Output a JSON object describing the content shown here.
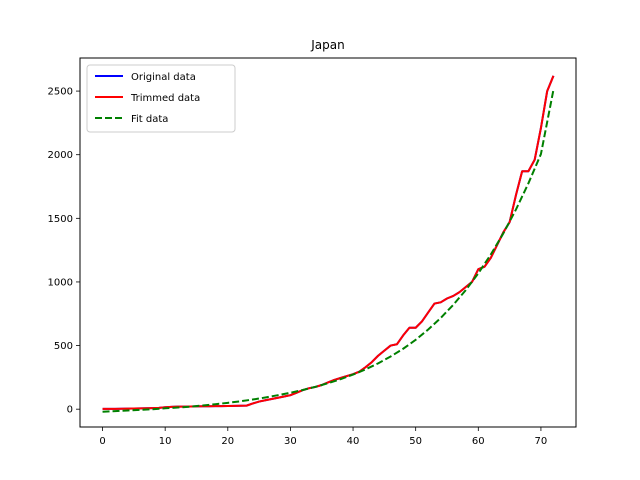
{
  "chart_data": {
    "type": "line",
    "title": "Japan",
    "xlabel": "",
    "ylabel": "",
    "xlim": [
      -3.6,
      75.6
    ],
    "ylim": [
      -140,
      2760
    ],
    "xticks": [
      0,
      10,
      20,
      30,
      40,
      50,
      60,
      70
    ],
    "yticks": [
      0,
      500,
      1000,
      1500,
      2000,
      2500
    ],
    "grid": false,
    "legend": "top-left",
    "series": [
      {
        "name": "Original data",
        "color": "#0000ff",
        "style": "solid",
        "x": [
          0,
          1,
          2,
          3,
          4,
          5,
          6,
          7,
          8,
          9,
          10,
          11,
          12,
          13,
          14,
          15,
          16,
          17,
          18,
          19,
          20,
          21,
          22,
          23,
          24,
          25,
          26,
          27,
          28,
          29,
          30,
          31,
          32,
          33,
          34,
          35,
          36,
          37,
          38,
          39,
          40,
          41,
          42,
          43,
          44,
          45,
          46,
          47,
          48,
          49,
          50,
          51,
          52,
          53,
          54,
          55,
          56,
          57,
          58,
          59,
          60,
          61,
          62,
          63,
          64,
          65,
          66,
          67,
          68,
          69,
          70,
          71,
          72
        ],
        "y": [
          2,
          2,
          2,
          3,
          4,
          5,
          6,
          7,
          8,
          10,
          15,
          18,
          20,
          20,
          21,
          22,
          23,
          23,
          24,
          24,
          25,
          26,
          27,
          28,
          45,
          60,
          70,
          80,
          90,
          100,
          110,
          130,
          150,
          165,
          175,
          190,
          210,
          230,
          245,
          260,
          275,
          295,
          330,
          370,
          420,
          460,
          500,
          510,
          580,
          640,
          640,
          690,
          760,
          830,
          840,
          870,
          890,
          920,
          960,
          1000,
          1100,
          1120,
          1190,
          1290,
          1390,
          1470,
          1680,
          1870,
          1870,
          1960,
          2210,
          2500,
          2620
        ]
      },
      {
        "name": "Trimmed data",
        "color": "#ff0000",
        "style": "solid",
        "x": [
          0,
          1,
          2,
          3,
          4,
          5,
          6,
          7,
          8,
          9,
          10,
          11,
          12,
          13,
          14,
          15,
          16,
          17,
          18,
          19,
          20,
          21,
          22,
          23,
          24,
          25,
          26,
          27,
          28,
          29,
          30,
          31,
          32,
          33,
          34,
          35,
          36,
          37,
          38,
          39,
          40,
          41,
          42,
          43,
          44,
          45,
          46,
          47,
          48,
          49,
          50,
          51,
          52,
          53,
          54,
          55,
          56,
          57,
          58,
          59,
          60,
          61,
          62,
          63,
          64,
          65,
          66,
          67,
          68,
          69,
          70,
          71,
          72
        ],
        "y": [
          2,
          2,
          2,
          3,
          4,
          5,
          6,
          7,
          8,
          10,
          15,
          18,
          20,
          20,
          21,
          22,
          23,
          23,
          24,
          24,
          25,
          26,
          27,
          28,
          45,
          60,
          70,
          80,
          90,
          100,
          110,
          130,
          150,
          165,
          175,
          190,
          210,
          230,
          245,
          260,
          275,
          295,
          330,
          370,
          420,
          460,
          500,
          510,
          580,
          640,
          640,
          690,
          760,
          830,
          840,
          870,
          890,
          920,
          960,
          1000,
          1100,
          1120,
          1190,
          1290,
          1390,
          1470,
          1680,
          1870,
          1870,
          1960,
          2210,
          2500,
          2620
        ]
      },
      {
        "name": "Fit data",
        "color": "#008000",
        "style": "dashed",
        "x": [
          0,
          2,
          4,
          6,
          8,
          10,
          12,
          14,
          16,
          18,
          20,
          22,
          24,
          26,
          28,
          30,
          32,
          34,
          36,
          38,
          40,
          42,
          44,
          46,
          48,
          50,
          52,
          54,
          56,
          58,
          60,
          62,
          64,
          66,
          68,
          70,
          72
        ],
        "y": [
          -20,
          -15,
          -10,
          -5,
          0,
          7,
          13,
          20,
          29,
          39,
          50,
          62,
          76,
          92,
          110,
          129,
          151,
          176,
          204,
          236,
          272,
          313,
          360,
          414,
          475,
          545,
          626,
          717,
          820,
          936,
          1068,
          1216,
          1382,
          1568,
          1775,
          2005,
          2510
        ]
      }
    ]
  }
}
